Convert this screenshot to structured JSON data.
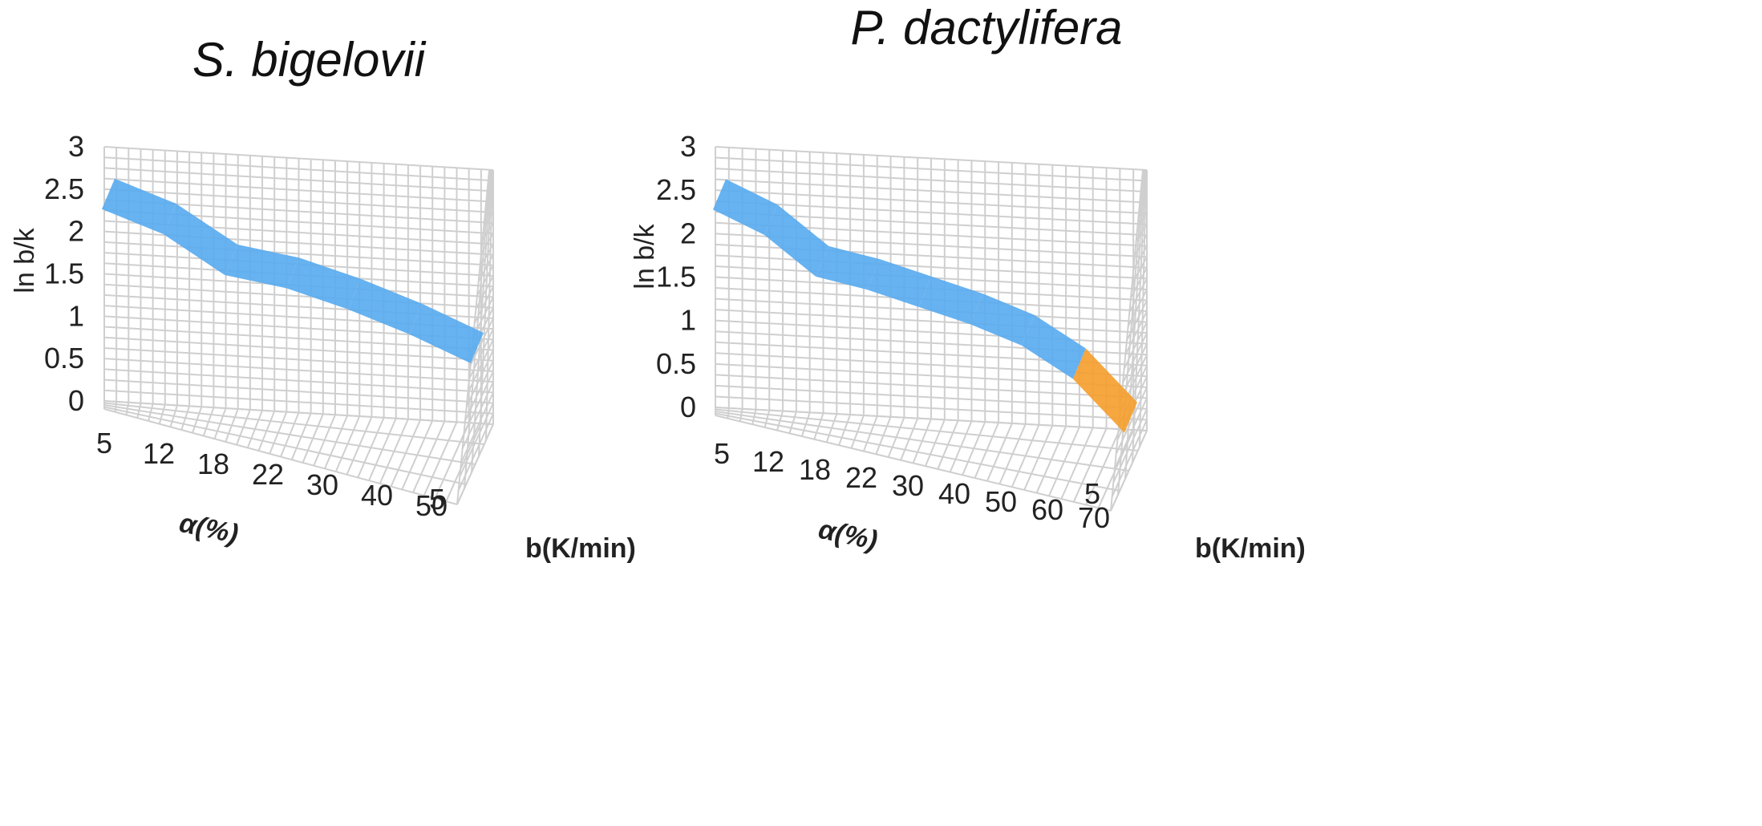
{
  "chart_data": [
    {
      "type": "surface",
      "title": "S. bigelovii",
      "zlabel": "ln b/k",
      "xlabel": "α(%)",
      "ylabel": "b(K/min)",
      "zlim": [
        0,
        3
      ],
      "z_ticks": [
        "0",
        "0.5",
        "1",
        "1.5",
        "2",
        "2.5",
        "3"
      ],
      "x_categories": [
        "5",
        "12",
        "18",
        "22",
        "30",
        "40",
        "50"
      ],
      "y_categories": [
        "5"
      ],
      "surface_colors": [
        "#5aabef"
      ],
      "series": [
        {
          "name": "5",
          "values": [
            2.8,
            2.5,
            2.0,
            1.85,
            1.6,
            1.3,
            0.95
          ]
        }
      ]
    },
    {
      "type": "surface",
      "title": "P. dactylifera",
      "zlabel": "ln b/k",
      "xlabel": "α(%)",
      "ylabel": "b(K/min)",
      "zlim": [
        0,
        3
      ],
      "z_ticks": [
        "0",
        "0.5",
        "1",
        "1.5",
        "2",
        "2.5",
        "3"
      ],
      "x_categories": [
        "5",
        "12",
        "18",
        "22",
        "30",
        "40",
        "50",
        "60",
        "70"
      ],
      "y_categories": [
        "5"
      ],
      "surface_colors": [
        "#5aabef",
        "#c8c8c8",
        "#f5a030"
      ],
      "series": [
        {
          "name": "5",
          "values": [
            2.8,
            2.5,
            2.0,
            1.85,
            1.65,
            1.45,
            1.2,
            0.8,
            0.15
          ]
        }
      ]
    }
  ]
}
